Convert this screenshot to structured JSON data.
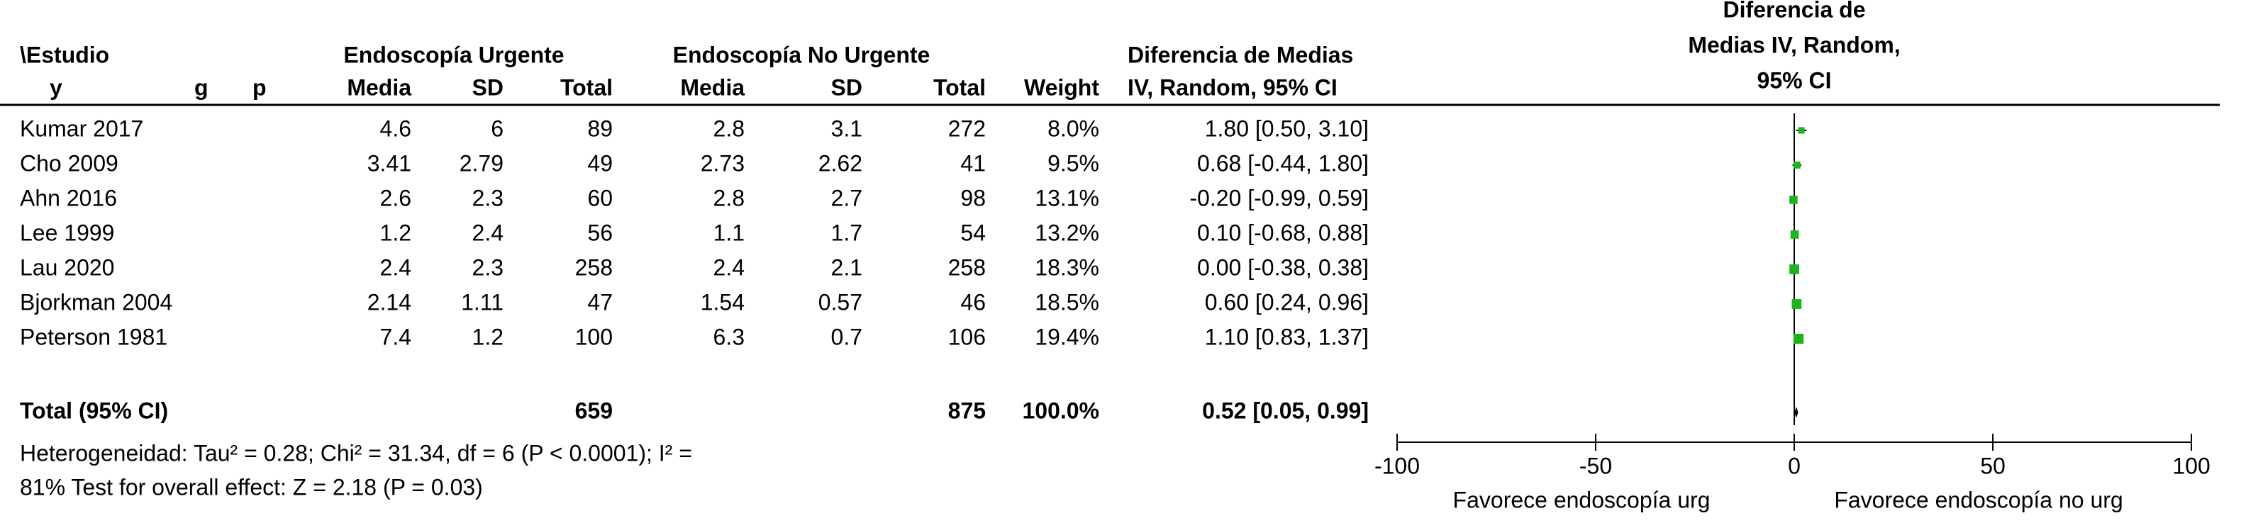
{
  "chart_data": {
    "type": "forest",
    "header": {
      "study": "\\Estudio",
      "urgent": "Endoscopía Urgente",
      "nonurgent": "Endoscopía No Urgente",
      "effect": "Diferencia de Medias",
      "sub_row": [
        "y",
        "g",
        "p"
      ],
      "columns": [
        "Media",
        "SD",
        "Total",
        "Media",
        "SD",
        "Total",
        "Weight",
        "IV, Random, 95% CI"
      ],
      "plot": [
        "Diferencia de",
        "Medias IV, Random,",
        "95% CI"
      ]
    },
    "studies": [
      "Kumar 2017",
      "Cho 2009",
      "Ahn 2016",
      "Lee 1999",
      "Lau 2020",
      "Bjorkman 2004",
      "Peterson 1981"
    ],
    "urgent_mean": [
      4.6,
      3.41,
      2.6,
      1.2,
      2.4,
      2.14,
      7.4
    ],
    "urgent_sd": [
      6,
      2.79,
      2.3,
      2.4,
      2.3,
      1.11,
      1.2
    ],
    "urgent_total": [
      89,
      49,
      60,
      56,
      258,
      47,
      100
    ],
    "nonurgent_mean": [
      2.8,
      2.73,
      2.8,
      1.1,
      2.4,
      1.54,
      6.3
    ],
    "nonurgent_sd": [
      3.1,
      2.62,
      2.7,
      1.7,
      2.1,
      0.57,
      0.7
    ],
    "nonurgent_total": [
      272,
      41,
      98,
      54,
      258,
      46,
      106
    ],
    "weight": [
      8.0,
      9.5,
      13.1,
      13.2,
      18.3,
      18.5,
      19.4
    ],
    "weight_labels": [
      "8.0%",
      "9.5%",
      "13.1%",
      "13.2%",
      "18.3%",
      "18.5%",
      "19.4%"
    ],
    "effect": [
      1.8,
      0.68,
      -0.2,
      0.1,
      0,
      0.6,
      1.1
    ],
    "ci_lower": [
      0.5,
      -0.44,
      -0.99,
      -0.68,
      -0.38,
      0.24,
      0.83
    ],
    "ci_upper": [
      3.1,
      1.8,
      0.59,
      0.88,
      0.38,
      0.96,
      1.37
    ],
    "ci_labels": [
      "1.80 [0.50, 3.10]",
      "0.68 [-0.44, 1.80]",
      "-0.20 [-0.99, 0.59]",
      "0.10 [-0.68, 0.88]",
      "0.00 [-0.38, 0.38]",
      "0.60 [0.24, 0.96]",
      "1.10 [0.83, 1.37]"
    ],
    "total": {
      "label": "Total (95% CI)",
      "urgent_total": 659,
      "nonurgent_total": 875,
      "weight": 100,
      "weight_label": "100.0%",
      "effect": 0.52,
      "ci_lower": 0.05,
      "ci_upper": 0.99,
      "ci_label": "0.52 [0.05, 0.99]"
    },
    "heterogeneity": [
      "Heterogeneidad: Tau² = 0.28; Chi² = 31.34, df = 6 (P < 0.0001); I² =",
      "81% Test for overall effect: Z = 2.18 (P = 0.03)"
    ],
    "xlim": [
      -100,
      100
    ],
    "xticks": [
      -100,
      -50,
      0,
      50,
      100
    ],
    "x_labels": [
      "Favorece endoscopía urg",
      "Favorece endoscopía no urg"
    ],
    "color": "#1bb51b"
  }
}
